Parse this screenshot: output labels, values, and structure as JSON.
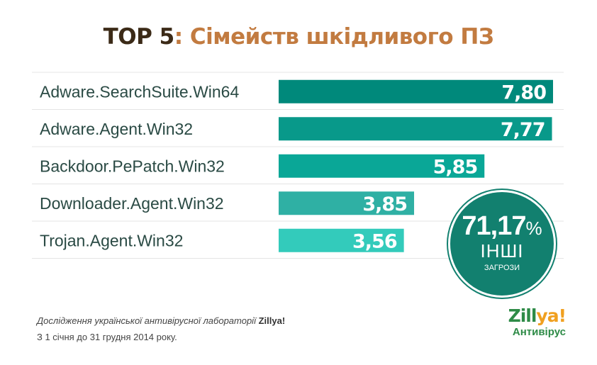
{
  "title": {
    "part1": "TOP 5",
    "part2": ": Сімейств шкідливого ПЗ"
  },
  "colors": {
    "title_dark": "#3b2a17",
    "title_accent": "#c27b40",
    "bars": [
      "#00897b",
      "#08998a",
      "#0aa797",
      "#2fb0a4",
      "#33cbbb"
    ],
    "circle": "#12806f",
    "label_text": "#2a4a44"
  },
  "chart_data": {
    "type": "bar",
    "orientation": "horizontal",
    "categories": [
      "Adware.SearchSuite.Win64",
      "Adware.Agent.Win32",
      "Backdoor.PePatch.Win32",
      "Downloader.Agent.Win32",
      "Trojan.Agent.Win32"
    ],
    "values": [
      7.8,
      7.77,
      5.85,
      3.85,
      3.56
    ],
    "value_labels": [
      "7,80",
      "7,77",
      "5,85",
      "3,85",
      "3,56"
    ],
    "xlim": [
      0,
      7.8
    ],
    "grid": false
  },
  "other": {
    "value": "71,17",
    "sign": "%",
    "label_big": "ІНШІ",
    "label_small": "ЗАГРОЗИ"
  },
  "footer": {
    "line1_prefix": "Дослідження української антивірусної лабораторії ",
    "line1_brand": "Zillya!",
    "line2": "З 1 січня до 31 грудня 2014 року."
  },
  "logo": {
    "name_main": "Zill",
    "name_accent": "ya!",
    "subtitle": "Антивірус"
  }
}
